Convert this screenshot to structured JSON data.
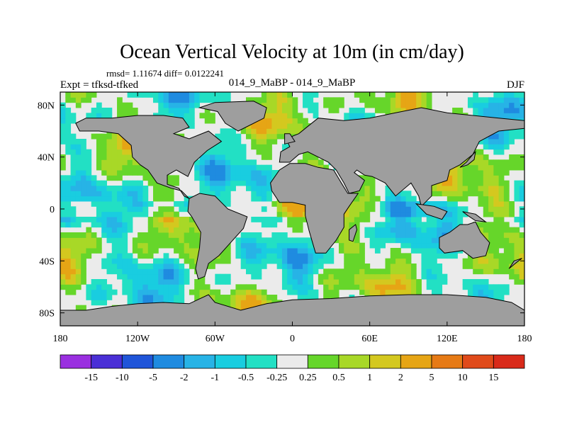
{
  "chart_data": {
    "type": "heatmap",
    "title": "Ocean Vertical Velocity at 10m (in cm/day)",
    "stats_text": "rmsd= 1.11674 diff= 0.0122241",
    "left_label": "Expt = tfksd-tfked",
    "center_label": "014_9_MaBP - 014_9_MaBP",
    "right_label": "DJF",
    "xlim": [
      -180,
      180
    ],
    "ylim": [
      -90,
      90
    ],
    "x_ticks": [
      {
        "value": -180,
        "label": "180"
      },
      {
        "value": -120,
        "label": "120W"
      },
      {
        "value": -60,
        "label": "60W"
      },
      {
        "value": 0,
        "label": "0"
      },
      {
        "value": 60,
        "label": "60E"
      },
      {
        "value": 120,
        "label": "120E"
      },
      {
        "value": 180,
        "label": "180"
      }
    ],
    "y_ticks": [
      {
        "value": 80,
        "label": "80N"
      },
      {
        "value": 40,
        "label": "40N"
      },
      {
        "value": 0,
        "label": "0"
      },
      {
        "value": -40,
        "label": "40S"
      },
      {
        "value": -80,
        "label": "80S"
      }
    ],
    "colorbar": {
      "levels": [
        "-15",
        "-10",
        "-5",
        "-2",
        "-1",
        "-0.5",
        "-0.25",
        "0.25",
        "0.5",
        "1",
        "2",
        "5",
        "10",
        "15"
      ],
      "colors": [
        "#9a2fe0",
        "#4a2fd6",
        "#1f55d9",
        "#1f8be0",
        "#27b3e6",
        "#19cde0",
        "#22e0c4",
        "#ebebeb",
        "#66d62a",
        "#a8d827",
        "#d4c81f",
        "#e6a515",
        "#e67a15",
        "#e04a1a",
        "#d92a1a"
      ]
    },
    "land_color": "#9e9e9e"
  }
}
